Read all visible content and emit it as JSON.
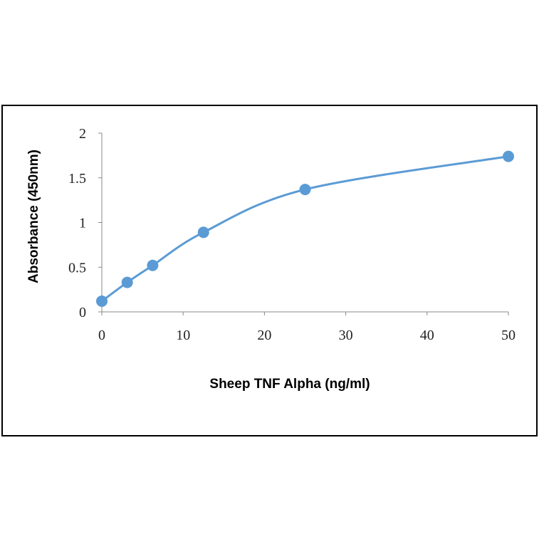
{
  "chart_data": {
    "type": "line",
    "title": "",
    "xlabel": "Sheep TNF Alpha (ng/ml)",
    "ylabel": "Absorbance (450nm)",
    "xlim": [
      0,
      50
    ],
    "ylim": [
      0,
      2
    ],
    "xticks": [
      0,
      10,
      20,
      30,
      40,
      50
    ],
    "yticks": [
      0,
      0.5,
      1,
      1.5,
      2
    ],
    "xtick_labels": [
      "0",
      "10",
      "20",
      "30",
      "40",
      "50"
    ],
    "ytick_labels": [
      "0",
      "0.5",
      "1",
      "1.5",
      "2"
    ],
    "grid": false,
    "smooth": true,
    "series": [
      {
        "color": "#5b9bd5",
        "x": [
          0,
          3.125,
          6.25,
          12.5,
          25,
          50
        ],
        "y": [
          0.12,
          0.33,
          0.52,
          0.89,
          1.37,
          1.74
        ]
      }
    ]
  }
}
